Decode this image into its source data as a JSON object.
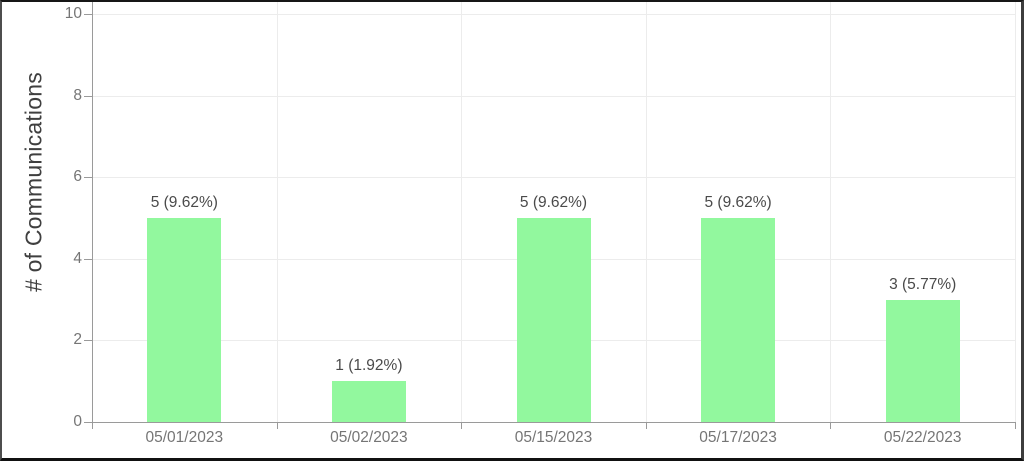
{
  "chart_data": {
    "type": "bar",
    "title": "",
    "xlabel": "",
    "ylabel": "# of Communications",
    "categories": [
      "05/01/2023",
      "05/02/2023",
      "05/15/2023",
      "05/17/2023",
      "05/22/2023"
    ],
    "values": [
      5,
      1,
      5,
      5,
      3
    ],
    "bar_labels": [
      "5 (9.62%)",
      "1 (1.92%)",
      "5 (9.62%)",
      "5 (9.62%)",
      "3 (5.77%)"
    ],
    "yticks": [
      0,
      2,
      4,
      6,
      8,
      10
    ],
    "ylim": [
      0,
      10
    ],
    "grid": true,
    "legend": false,
    "colors": {
      "bar": "#92f89e",
      "axis": "#9a9a9a",
      "gridline": "#ececec",
      "tick_label": "#757575",
      "value_label": "#4a4a4a",
      "axis_title": "#3f3f3f",
      "background": "#ffffff"
    }
  }
}
